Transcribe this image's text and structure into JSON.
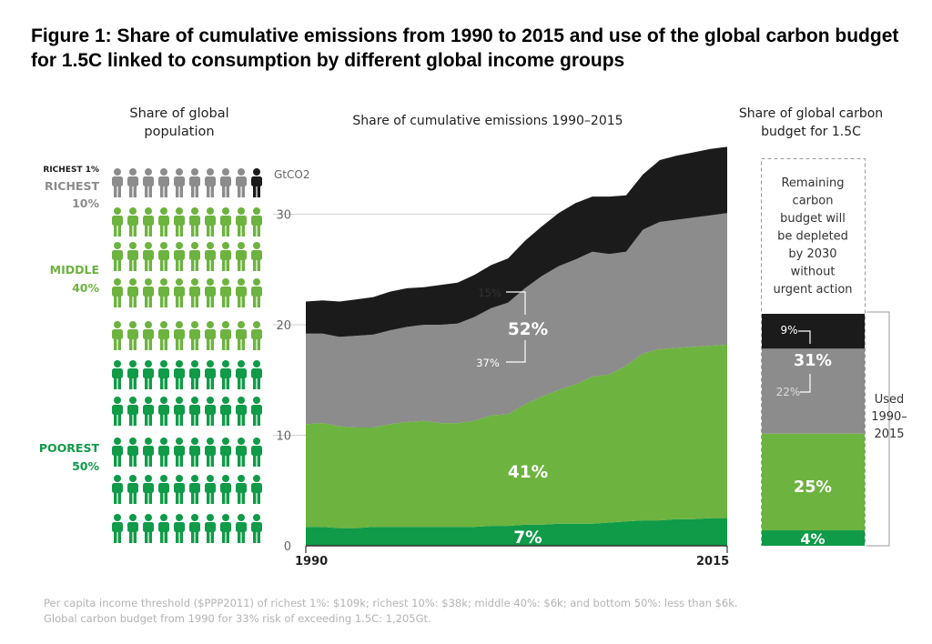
{
  "title": "Figure 1: Share of cumulative emissions from 1990 to 2015 and use of the global carbon budget for 1.5C linked to consumption by different global income groups",
  "population_panel": {
    "heading_line1": "Share of global",
    "heading_line2": "population",
    "richest1_label": "RICHEST 1%",
    "richest10_label": "RICHEST",
    "richest10_pct": "10%",
    "middle_label": "MIDDLE",
    "middle_pct": "40%",
    "poorest_label": "POOREST",
    "poorest_pct": "50%",
    "icon_rows": [
      {
        "group": "richest10",
        "count": 9,
        "black": 1
      },
      {
        "group": "middle",
        "count": 10,
        "black": 0
      },
      {
        "group": "middle",
        "count": 10,
        "black": 0
      },
      {
        "group": "middle",
        "count": 10,
        "black": 0
      },
      {
        "group": "middle",
        "count": 10,
        "black": 0
      },
      {
        "group": "poorest",
        "count": 10,
        "black": 0
      },
      {
        "group": "poorest",
        "count": 10,
        "black": 0
      },
      {
        "group": "poorest",
        "count": 10,
        "black": 0
      },
      {
        "group": "poorest",
        "count": 10,
        "black": 0
      },
      {
        "group": "poorest",
        "count": 10,
        "black": 0
      }
    ]
  },
  "budget_panel": {
    "heading_line1": "Share of global carbon",
    "heading_line2": "budget for 1.5C",
    "remaining_lines": [
      "Remaining",
      "carbon",
      "budget will",
      "be depleted",
      "by 2030",
      "without",
      "urgent action"
    ],
    "used_lines": [
      "Used",
      "1990–",
      "2015"
    ],
    "segments": [
      {
        "name": "poorest",
        "share": 4,
        "label": "4%"
      },
      {
        "name": "middle",
        "share": 25,
        "label": "25%"
      },
      {
        "name": "richest10_excl1",
        "share": 22,
        "label": "22%"
      },
      {
        "name": "richest1",
        "share": 9,
        "label": "9%"
      }
    ],
    "richest10_total_label": "31%",
    "used_total_share": 60
  },
  "footnote": {
    "line1": "Per capita income threshold ($PPP2011) of richest 1%: $109k; richest 10%: $38k; middle 40%: $6k; and bottom 50%: less than $6k.",
    "line2": "Global carbon budget from 1990 for 33% risk of exceeding 1.5C: 1,205Gt."
  },
  "colors": {
    "poorest": "#0f9b48",
    "middle": "#6db33f",
    "richest10": "#8c8c8c",
    "richest1": "#1b1b1b",
    "gridline": "#cfcfcf",
    "label_gray": "#666666"
  },
  "chart_data": {
    "type": "area",
    "title": "Share of cumulative emissions 1990–2015",
    "ylabel": "GtCO2",
    "xlabel": "",
    "x": [
      1990,
      1991,
      1992,
      1993,
      1994,
      1995,
      1996,
      1997,
      1998,
      1999,
      2000,
      2001,
      2002,
      2003,
      2004,
      2005,
      2006,
      2007,
      2008,
      2009,
      2010,
      2011,
      2012,
      2013,
      2014,
      2015
    ],
    "x_tick_labels": [
      "1990",
      "2015"
    ],
    "ylim": [
      0,
      36
    ],
    "yticks": [
      0,
      10,
      20,
      30
    ],
    "stacked": true,
    "series": [
      {
        "name": "Poorest 50%",
        "share_label": "7%",
        "values": [
          1.7,
          1.7,
          1.6,
          1.6,
          1.7,
          1.7,
          1.7,
          1.7,
          1.7,
          1.7,
          1.7,
          1.8,
          1.8,
          1.9,
          1.9,
          2.0,
          2.0,
          2.0,
          2.1,
          2.2,
          2.3,
          2.3,
          2.4,
          2.4,
          2.5,
          2.5
        ]
      },
      {
        "name": "Middle 40%",
        "share_label": "41%",
        "values": [
          9.3,
          9.4,
          9.2,
          9.1,
          9.0,
          9.3,
          9.5,
          9.6,
          9.4,
          9.4,
          9.6,
          10.0,
          10.1,
          10.9,
          11.6,
          12.1,
          12.6,
          13.3,
          13.4,
          14.1,
          15.1,
          15.5,
          15.5,
          15.6,
          15.6,
          15.7
        ]
      },
      {
        "name": "Richest 10% (excl. richest 1%)",
        "share_label": "37%",
        "values": [
          8.2,
          8.1,
          8.1,
          8.3,
          8.4,
          8.5,
          8.6,
          8.7,
          8.9,
          9.0,
          9.4,
          9.7,
          10.1,
          10.5,
          10.9,
          11.2,
          11.3,
          11.3,
          10.9,
          10.3,
          11.2,
          11.5,
          11.6,
          11.7,
          11.8,
          11.9
        ]
      },
      {
        "name": "Richest 1%",
        "share_label": "15%",
        "values": [
          2.9,
          3.0,
          3.2,
          3.3,
          3.4,
          3.5,
          3.5,
          3.4,
          3.6,
          3.7,
          3.8,
          3.9,
          4.0,
          4.3,
          4.5,
          4.8,
          5.1,
          5.0,
          5.2,
          5.1,
          5.0,
          5.6,
          5.8,
          5.9,
          6.0,
          6.0
        ]
      }
    ],
    "annotations": [
      {
        "text": "52%",
        "target": "Richest 10% combined"
      },
      {
        "text": "15%",
        "target": "Richest 1%"
      },
      {
        "text": "37%",
        "target": "Richest 10% (excl. richest 1%)"
      }
    ]
  }
}
